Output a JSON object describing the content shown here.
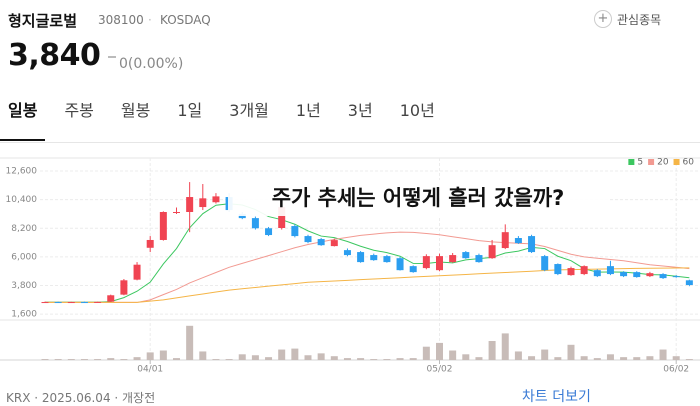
{
  "header": {
    "name": "형지글로벌",
    "code": "308100",
    "market": "KOSDAQ",
    "watch_button": "관심종목"
  },
  "price": {
    "current": "3,840",
    "change": "0(0.00%)"
  },
  "tabs": [
    "일봉",
    "주봉",
    "월봉",
    "1일",
    "3개월",
    "1년",
    "3년",
    "10년"
  ],
  "chart_data": {
    "type": "candlestick",
    "title": "주가 추세는 어떻게 흘러 갔을까?",
    "x": [
      null,
      null,
      null,
      null,
      null,
      null,
      null,
      null,
      "04/01",
      null,
      null,
      null,
      null,
      null,
      null,
      null,
      null,
      null,
      null,
      null,
      null,
      null,
      null,
      null,
      null,
      null,
      null,
      null,
      null,
      null,
      "05/02",
      null,
      null,
      null,
      null,
      null,
      null,
      null,
      null,
      null,
      null,
      null,
      null,
      null,
      null,
      null,
      null,
      null,
      "06/02",
      null
    ],
    "open": [
      2520,
      2530,
      2510,
      2530,
      2520,
      2560,
      3100,
      4250,
      6700,
      7300,
      9400,
      9450,
      9830,
      10200,
      10600,
      9300,
      8980,
      8200,
      8220,
      8370,
      7600,
      7370,
      6830,
      6520,
      6370,
      6140,
      6060,
      5900,
      5290,
      5140,
      4980,
      5600,
      6370,
      6140,
      5900,
      6680,
      7450,
      7600,
      6060,
      5450,
      4600,
      4680,
      4980,
      5290,
      4830,
      4830,
      4520,
      4680,
      4520,
      4200
    ],
    "high": [
      2560,
      2560,
      2550,
      2570,
      2560,
      3100,
      4300,
      5600,
      7600,
      9500,
      9800,
      11750,
      11600,
      10900,
      10900,
      9450,
      9100,
      8300,
      10000,
      8500,
      7700,
      7450,
      7400,
      6650,
      6450,
      6250,
      6150,
      6000,
      5350,
      6200,
      6250,
      6300,
      6450,
      6250,
      7300,
      8500,
      7600,
      7700,
      6150,
      5500,
      5250,
      5350,
      5050,
      5700,
      4900,
      4900,
      4850,
      4750,
      4600,
      4250
    ],
    "low": [
      2490,
      2500,
      2490,
      2500,
      2490,
      2540,
      3050,
      4200,
      6370,
      7250,
      9300,
      7900,
      9600,
      10100,
      9450,
      8900,
      8100,
      7600,
      8100,
      7500,
      7050,
      6850,
      6800,
      6050,
      5550,
      5700,
      5550,
      4950,
      4780,
      5050,
      4900,
      5550,
      5850,
      5550,
      5850,
      6600,
      7000,
      6300,
      4900,
      4600,
      4550,
      4600,
      4450,
      4600,
      4450,
      4400,
      4450,
      4300,
      4400,
      3750
    ],
    "close": [
      2530,
      2510,
      2530,
      2520,
      2540,
      3050,
      4200,
      5400,
      7300,
      9450,
      9450,
      10600,
      10500,
      10650,
      9600,
      8980,
      8200,
      7680,
      9830,
      7600,
      7140,
      6900,
      7290,
      6140,
      5600,
      5750,
      5600,
      4980,
      4830,
      6060,
      6060,
      6140,
      5900,
      5600,
      6900,
      7900,
      7060,
      6370,
      4980,
      4680,
      5140,
      5290,
      4520,
      4680,
      4520,
      4450,
      4750,
      4370,
      4450,
      3840
    ],
    "up_color": "#f04452",
    "down_color": "#2b9ef0",
    "volume": [
      1,
      1,
      1,
      1,
      1,
      2,
      1,
      3,
      8,
      10,
      2,
      36,
      9,
      1,
      1,
      6,
      5,
      3,
      11,
      12,
      5,
      7,
      4,
      2,
      2,
      1,
      1,
      2,
      2,
      14,
      18,
      10,
      6,
      3,
      20,
      28,
      9,
      4,
      11,
      3,
      16,
      4,
      2,
      6,
      3,
      3,
      4,
      11,
      4,
      1
    ],
    "volume_lim": [
      0,
      40
    ],
    "volume_color": "#c8bcb8",
    "ylim": [
      1150,
      13600
    ],
    "yticks": [
      {
        "value": 12600,
        "label": "12,600"
      },
      {
        "value": 10400,
        "label": "10,400"
      },
      {
        "value": 8200,
        "label": "8,200"
      },
      {
        "value": 6000,
        "label": "6,000"
      },
      {
        "value": 3800,
        "label": "3,800"
      },
      {
        "value": 1600,
        "label": "1,600"
      }
    ],
    "grid": true,
    "ma": [
      {
        "name": "5",
        "color": "#3cc760",
        "values": [
          2520,
          2520,
          2520,
          2520,
          2520,
          2560,
          2870,
          3360,
          4060,
          5460,
          6640,
          8240,
          9320,
          9970,
          10080,
          9990,
          9640,
          9100,
          8860,
          8510,
          8000,
          7600,
          7480,
          7180,
          6820,
          6510,
          6330,
          6050,
          5500,
          5490,
          5610,
          5540,
          5770,
          5870,
          5960,
          6300,
          6440,
          6730,
          6640,
          6050,
          5710,
          5090,
          4830,
          4840,
          4830,
          4750,
          4640,
          4620,
          4510,
          4400
        ]
      },
      {
        "name": "20",
        "color": "#f29a92",
        "values": [
          2500,
          2500,
          2500,
          2500,
          2500,
          2500,
          2500,
          2500,
          2700,
          3100,
          3500,
          4000,
          4400,
          4800,
          5200,
          5500,
          5800,
          6100,
          6400,
          6700,
          6950,
          7150,
          7350,
          7500,
          7650,
          7750,
          7850,
          7900,
          7880,
          7800,
          7700,
          7550,
          7400,
          7250,
          7150,
          7100,
          7050,
          7000,
          6800,
          6500,
          6200,
          6000,
          5900,
          5800,
          5700,
          5550,
          5400,
          5300,
          5200,
          5100
        ]
      },
      {
        "name": "60",
        "color": "#f5b547",
        "values": [
          2500,
          2500,
          2500,
          2500,
          2500,
          2500,
          2500,
          2500,
          2600,
          2700,
          2850,
          3000,
          3150,
          3300,
          3450,
          3550,
          3650,
          3750,
          3850,
          3950,
          4050,
          4100,
          4150,
          4200,
          4250,
          4300,
          4350,
          4400,
          4450,
          4500,
          4550,
          4600,
          4650,
          4700,
          4750,
          4800,
          4850,
          4900,
          4950,
          5000,
          5020,
          5040,
          5060,
          5080,
          5100,
          5120,
          5130,
          5140,
          5150,
          5160
        ]
      }
    ]
  },
  "footer": {
    "info": "KRX · 2025.06.04 · 개장전",
    "more": "차트 더보기"
  }
}
